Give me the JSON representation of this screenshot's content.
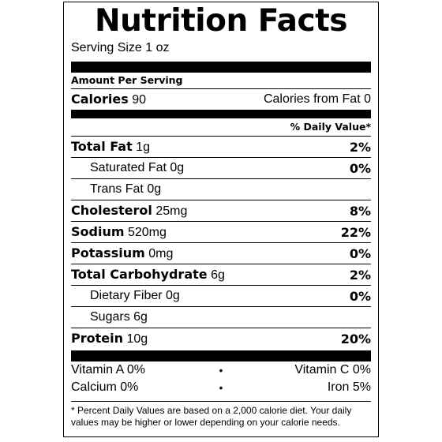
{
  "title": "Nutrition Facts",
  "serving_size": "Serving Size 1 oz",
  "amount_per_serving": "Amount Per Serving",
  "calories": {
    "label": "Calories",
    "value": "90",
    "from_fat": "Calories from Fat 0"
  },
  "daily_value_header": "% Daily Value*",
  "nutrients": [
    {
      "name": "Total Fat",
      "amount": "1g",
      "dv": "2%"
    },
    {
      "name": "Saturated Fat",
      "amount": "0g",
      "dv": "0%"
    },
    {
      "name": "Trans Fat",
      "amount": "0g",
      "dv": ""
    },
    {
      "name": "Cholesterol",
      "amount": "25mg",
      "dv": "8%"
    },
    {
      "name": "Sodium",
      "amount": "520mg",
      "dv": "22%"
    },
    {
      "name": "Potassium",
      "amount": "0mg",
      "dv": "0%"
    },
    {
      "name": "Total Carbohydrate",
      "amount": "6g",
      "dv": "2%"
    },
    {
      "name": "Dietary Fiber",
      "amount": "0g",
      "dv": "0%"
    },
    {
      "name": "Sugars",
      "amount": "6g",
      "dv": ""
    },
    {
      "name": "Protein",
      "amount": "10g",
      "dv": "20%"
    }
  ],
  "vitamins": [
    {
      "left": "Vitamin A  0%",
      "bullet": "•",
      "right": "Vitamin C  0%"
    },
    {
      "left": "Calcium  0%",
      "bullet": "•",
      "right": "Iron  5%"
    }
  ],
  "footnote": "* Percent Daily Values are based on a 2,000 calorie diet. Your daily values may be higher or lower depending on your calorie needs."
}
